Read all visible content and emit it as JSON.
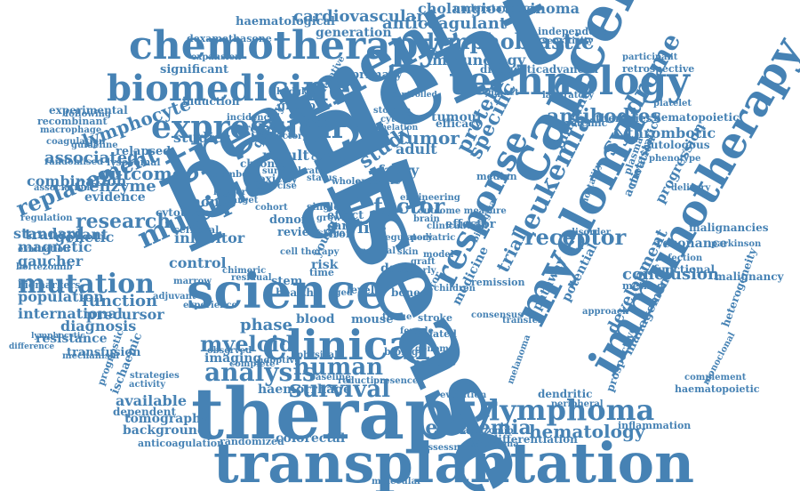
{
  "colors": {
    "word": "#4682b4",
    "background": "#ffffff"
  },
  "words": [
    "patient",
    "disease",
    "therapy",
    "transplantation",
    "cancer",
    "cell",
    "treatment",
    "science",
    "clinical",
    "myeloma",
    "immunotherapy",
    "chemotherapy",
    "biomedicine",
    "technology",
    "expression",
    "lymphoblastic",
    "response",
    "multiple",
    "mutation",
    "lymphoma",
    "leukemia",
    "survival",
    "analysis",
    "human",
    "syndrome",
    "leukaemia",
    "myeloid",
    "receptor",
    "research",
    "factor",
    "study",
    "antibodies",
    "replacement",
    "outcome",
    "hematology",
    "cardiovascular",
    "cholangiocarcinoma",
    "anticoagulant",
    "generation",
    "immunology",
    "haematological",
    "dexamethasone",
    "significant",
    "primary",
    "diagnostic",
    "advanced",
    "retrospective",
    "participant",
    "independent",
    "sensitivity",
    "understanding",
    "expansion",
    "induction",
    "experimental",
    "recombinant",
    "macrophage",
    "coagulation",
    "randomised",
    "association",
    "combination",
    "transplant",
    "international",
    "population",
    "diagnosis",
    "resistance",
    "transfusion",
    "bortezomib",
    "biomarkers",
    "magnetic",
    "gaucher",
    "standard",
    "genetic",
    "evidence",
    "regulation",
    "evaluation",
    "lymphocyte",
    "associated",
    "relapsed",
    "guideline",
    "lysosomal",
    "enzyme",
    "studies",
    "month",
    "cytotoxic",
    "cerebral",
    "higher",
    "chronic",
    "quality",
    "relapse",
    "result",
    "group",
    "model",
    "adult",
    "fabry",
    "tumor",
    "tumour",
    "efficacy",
    "protein",
    "specific",
    "immune",
    "systemic",
    "therapies",
    "hematopoietic",
    "thrombotic",
    "autologous",
    "phenotype",
    "metastatic",
    "activation",
    "progression",
    "resonance",
    "malignancies",
    "parkinson",
    "infection",
    "functional",
    "malignancy",
    "heterogeneity",
    "development",
    "management",
    "prospective",
    "complement",
    "monoclonal",
    "haematopoietic",
    "inflammation",
    "differentiation",
    "carcinoma",
    "assessment",
    "carfilzomib",
    "peripheral",
    "dendritic",
    "evolution",
    "melanoma",
    "positive",
    "related",
    "biology",
    "female",
    "stroke",
    "vector",
    "bone",
    "level",
    "aged",
    "health",
    "stem",
    "risk",
    "time",
    "data",
    "young",
    "mouse",
    "blood",
    "phase",
    "imaging",
    "observed",
    "complete",
    "adoptive",
    "physical",
    "baseline",
    "reduction",
    "presence",
    "available",
    "dependent",
    "tomography",
    "background",
    "anticoagulation",
    "randomized",
    "colorectal",
    "molecular",
    "haemorrhage",
    "activity",
    "strategies",
    "ischaemic",
    "prognostic",
    "mechanism",
    "lymphocytic",
    "difference",
    "experience",
    "adjuvant",
    "precursor",
    "function",
    "inhibitor",
    "control",
    "marrow",
    "chimeric",
    "residual",
    "review",
    "donor",
    "cohort",
    "single",
    "effect",
    "iron",
    "care",
    "life",
    "trial",
    "medicine",
    "pathway",
    "potential",
    "conclusion",
    "method",
    "mortality",
    "plasma",
    "remission",
    "consensus",
    "approach",
    "transfer",
    "effector",
    "median",
    "impact",
    "laboratory",
    "controlled",
    "chelation",
    "storage",
    "cytokine",
    "negative",
    "hodgkin",
    "incidence",
    "following",
    "refractory",
    "cellular",
    "status",
    "toxicity",
    "number",
    "exercise",
    "growth",
    "whole",
    "biological",
    "disorder",
    "delivery",
    "engineering",
    "platelet",
    "regulatory",
    "stage",
    "normal",
    "skin",
    "pediatric",
    "brain",
    "graft",
    "exposure",
    "target",
    "model",
    "clinical trial",
    "cell therapy",
    "outcome measure",
    "survival rate",
    "children",
    "elderly",
    "genome",
    "tissue",
    "liver",
    "failure",
    "type"
  ]
}
